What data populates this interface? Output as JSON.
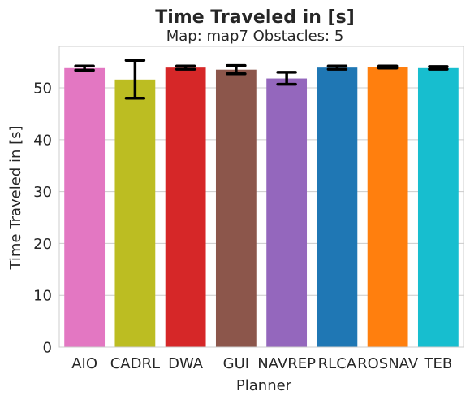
{
  "chart_data": {
    "type": "bar",
    "title": "Time Traveled in [s]",
    "subtitle": "Map: map7 Obstacles: 5",
    "xlabel": "Planner",
    "ylabel": "Time Traveled in [s]",
    "ylim": [
      0,
      58
    ],
    "yticks": [
      0,
      10,
      20,
      30,
      40,
      50
    ],
    "grid": true,
    "categories": [
      "AIO",
      "CADRL",
      "DWA",
      "GUI",
      "NAVREP",
      "RLCA",
      "ROSNAV",
      "TEB"
    ],
    "values": [
      53.8,
      51.6,
      53.9,
      53.5,
      51.8,
      53.9,
      54.0,
      53.8
    ],
    "error_low": [
      53.4,
      48.0,
      53.6,
      52.7,
      50.7,
      53.6,
      53.8,
      53.6
    ],
    "error_high": [
      54.2,
      55.3,
      54.2,
      54.3,
      53.0,
      54.2,
      54.2,
      54.1
    ],
    "colors": [
      "#e377c2",
      "#bcbd22",
      "#d62728",
      "#8c564b",
      "#9467bd",
      "#1f77b4",
      "#ff7f0e",
      "#17becf"
    ]
  }
}
